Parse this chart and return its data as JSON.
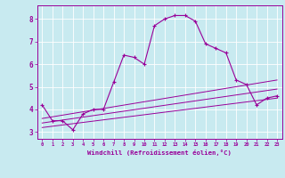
{
  "xlabel": "Windchill (Refroidissement éolien,°C)",
  "background_color": "#c8eaf0",
  "line_color": "#990099",
  "xlim": [
    -0.5,
    23.5
  ],
  "ylim": [
    2.7,
    8.6
  ],
  "xticks": [
    0,
    1,
    2,
    3,
    4,
    5,
    6,
    7,
    8,
    9,
    10,
    11,
    12,
    13,
    14,
    15,
    16,
    17,
    18,
    19,
    20,
    21,
    22,
    23
  ],
  "yticks": [
    3,
    4,
    5,
    6,
    7,
    8
  ],
  "main_x": [
    0,
    1,
    2,
    3,
    4,
    5,
    6,
    7,
    8,
    9,
    10,
    11,
    12,
    13,
    14,
    15,
    16,
    17,
    18,
    19,
    20,
    21,
    22,
    23
  ],
  "main_y": [
    4.2,
    3.5,
    3.5,
    3.1,
    3.8,
    4.0,
    4.0,
    5.2,
    6.4,
    6.3,
    6.0,
    7.7,
    8.0,
    8.15,
    8.15,
    7.9,
    6.9,
    6.7,
    6.5,
    5.3,
    5.1,
    4.2,
    4.5,
    4.6
  ],
  "line1_x": [
    0,
    23
  ],
  "line1_y": [
    3.2,
    4.5
  ],
  "line2_x": [
    0,
    23
  ],
  "line2_y": [
    3.4,
    4.9
  ],
  "line3_x": [
    0,
    23
  ],
  "line3_y": [
    3.6,
    5.3
  ]
}
